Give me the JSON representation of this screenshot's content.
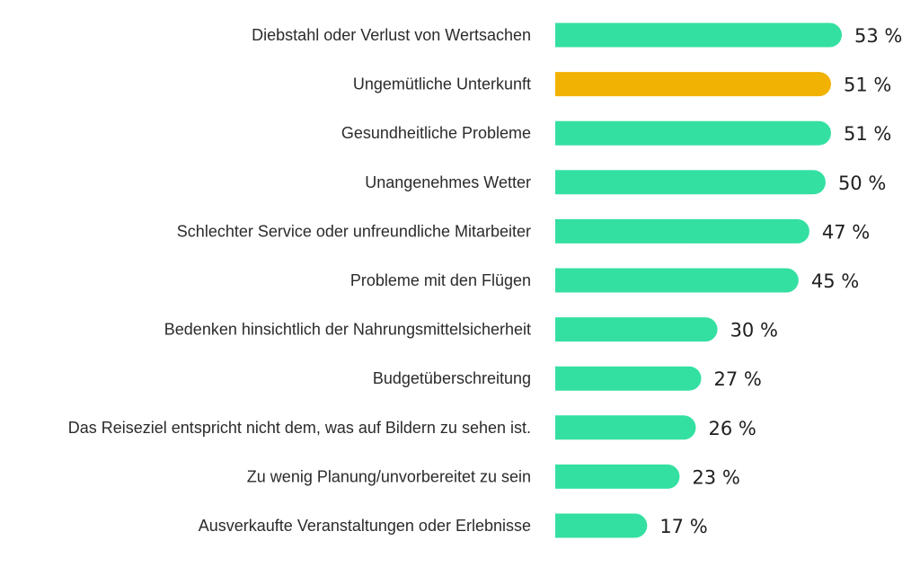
{
  "chart_data": {
    "type": "bar",
    "orientation": "horizontal",
    "categories": [
      "Diebstahl oder Verlust von Wertsachen",
      "Ungemütliche Unterkunft",
      "Gesundheitliche Probleme",
      "Unangenehmes Wetter",
      "Schlechter Service oder unfreundliche Mitarbeiter",
      "Probleme mit den Flügen",
      "Bedenken hinsichtlich der Nahrungsmittelsicherheit",
      "Budgetüberschreitung",
      "Das Reiseziel entspricht nicht dem, was auf Bildern zu sehen ist.",
      "Zu wenig Planung/unvorbereitet zu sein",
      "Ausverkaufte Veranstaltungen oder Erlebnisse"
    ],
    "values": [
      53,
      51,
      51,
      50,
      47,
      45,
      30,
      27,
      26,
      23,
      17
    ],
    "value_labels": [
      "53 %",
      "51 %",
      "51 %",
      "50 %",
      "47 %",
      "45 %",
      "30 %",
      "27 %",
      "26 %",
      "23 %",
      "17 %"
    ],
    "highlight_index": 1,
    "xlim": [
      0,
      53
    ],
    "colors": {
      "default": "#34e0a1",
      "highlight": "#f2b203"
    },
    "grid": false,
    "legend": "none"
  }
}
